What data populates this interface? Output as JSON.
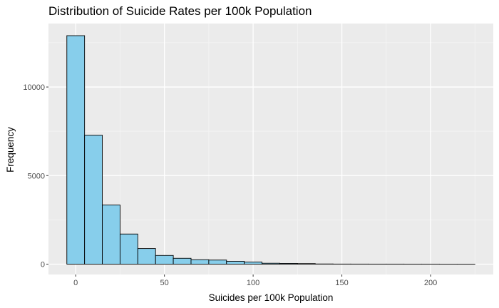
{
  "chart_data": {
    "type": "bar",
    "title": "Distribution of Suicide Rates per 100k Population",
    "xlabel": "Suicides per 100k Population",
    "ylabel": "Frequency",
    "xlim": [
      -5,
      225
    ],
    "ylim": [
      0,
      13000
    ],
    "x_ticks": [
      0,
      50,
      100,
      150,
      200
    ],
    "y_ticks": [
      0,
      5000,
      10000
    ],
    "bin_width": 10,
    "bins": [
      {
        "start": -5,
        "end": 5,
        "count": 12900
      },
      {
        "start": 5,
        "end": 15,
        "count": 7280
      },
      {
        "start": 15,
        "end": 25,
        "count": 3340
      },
      {
        "start": 25,
        "end": 35,
        "count": 1700
      },
      {
        "start": 35,
        "end": 45,
        "count": 880
      },
      {
        "start": 45,
        "end": 55,
        "count": 490
      },
      {
        "start": 55,
        "end": 65,
        "count": 330
      },
      {
        "start": 65,
        "end": 75,
        "count": 250
      },
      {
        "start": 75,
        "end": 85,
        "count": 230
      },
      {
        "start": 85,
        "end": 95,
        "count": 160
      },
      {
        "start": 95,
        "end": 105,
        "count": 120
      },
      {
        "start": 105,
        "end": 115,
        "count": 50
      },
      {
        "start": 115,
        "end": 125,
        "count": 40
      },
      {
        "start": 125,
        "end": 135,
        "count": 30
      },
      {
        "start": 135,
        "end": 145,
        "count": 10
      },
      {
        "start": 145,
        "end": 155,
        "count": 5
      },
      {
        "start": 155,
        "end": 165,
        "count": 4
      },
      {
        "start": 165,
        "end": 175,
        "count": 3
      },
      {
        "start": 175,
        "end": 185,
        "count": 3
      },
      {
        "start": 185,
        "end": 195,
        "count": 2
      },
      {
        "start": 195,
        "end": 205,
        "count": 2
      },
      {
        "start": 205,
        "end": 215,
        "count": 1
      },
      {
        "start": 215,
        "end": 225,
        "count": 1
      }
    ],
    "grid": true,
    "legend": "none",
    "colors": {
      "bar_fill": "#87ceeb",
      "bar_stroke": "#000000",
      "panel_bg": "#ebebeb",
      "grid_major": "#ffffff",
      "grid_minor": "#f5f5f5"
    }
  }
}
